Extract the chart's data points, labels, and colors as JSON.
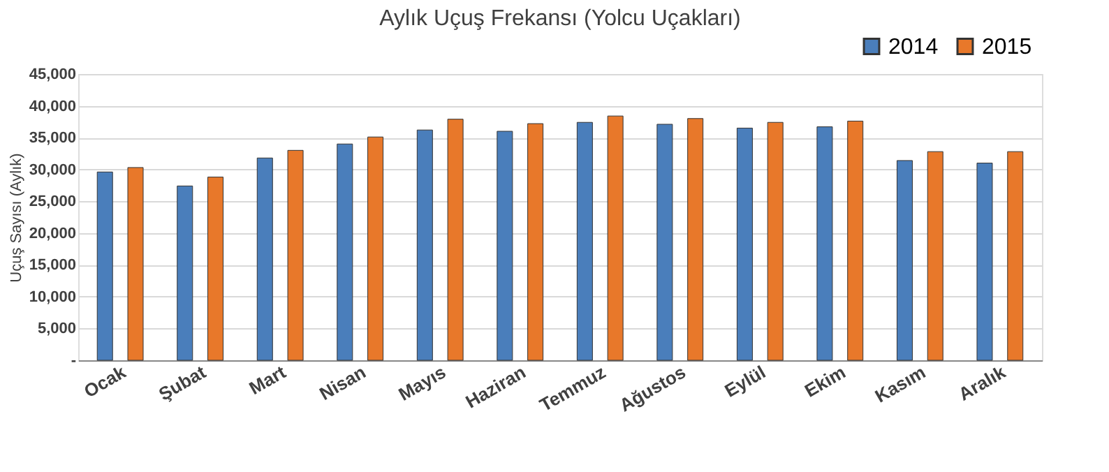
{
  "chart_data": {
    "type": "bar",
    "title": "Aylık Uçuş Frekansı (Yolcu Uçakları)",
    "ylabel": "Uçuş Sayısı (Aylık)",
    "categories": [
      "Ocak",
      "Şubat",
      "Mart",
      "Nisan",
      "Mayıs",
      "Haziran",
      "Temmuz",
      "Ağustos",
      "Eylül",
      "Ekim",
      "Kasım",
      "Aralık"
    ],
    "series": [
      {
        "name": "2014",
        "color": "#4a7ebb",
        "values": [
          29600,
          27400,
          31800,
          34000,
          36200,
          36000,
          37400,
          37100,
          36500,
          36700,
          31400,
          31000
        ]
      },
      {
        "name": "2015",
        "color": "#e8782a",
        "values": [
          30300,
          28800,
          33000,
          35100,
          37900,
          37200,
          38400,
          38000,
          37400,
          37600,
          32800,
          32800
        ]
      }
    ],
    "ylim": [
      0,
      45000
    ],
    "yticks": [
      {
        "value": 0,
        "label": "-"
      },
      {
        "value": 5000,
        "label": "5,000"
      },
      {
        "value": 10000,
        "label": "10,000"
      },
      {
        "value": 15000,
        "label": "15,000"
      },
      {
        "value": 20000,
        "label": "20,000"
      },
      {
        "value": 25000,
        "label": "25,000"
      },
      {
        "value": 30000,
        "label": "30,000"
      },
      {
        "value": 35000,
        "label": "35,000"
      },
      {
        "value": 40000,
        "label": "40,000"
      },
      {
        "value": 45000,
        "label": "45,000"
      }
    ],
    "grid": "y",
    "legend": "top right"
  }
}
